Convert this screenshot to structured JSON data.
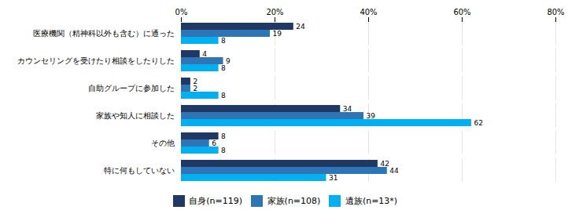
{
  "chart_data": {
    "type": "bar",
    "orientation": "horizontal",
    "categories": [
      "医療機関（精神科以外も含む）に通った",
      "カウンセリングを受けたり相談をしたりした",
      "自助グループに参加した",
      "家族や知人に相談した",
      "その他",
      "特に何もしていない"
    ],
    "series": [
      {
        "name": "自身(n=119)",
        "color": "#1F3864",
        "values": [
          24,
          4,
          2,
          34,
          8,
          42
        ]
      },
      {
        "name": "家族(n=108)",
        "color": "#2E75B6",
        "values": [
          19,
          9,
          2,
          39,
          6,
          44
        ]
      },
      {
        "name": "遺族(n=13*)",
        "color": "#00B0F0",
        "values": [
          8,
          8,
          8,
          62,
          8,
          31
        ]
      }
    ],
    "xlim": [
      0,
      80
    ],
    "xticks": [
      {
        "value": 0,
        "label": "0%"
      },
      {
        "value": 20,
        "label": "20%"
      },
      {
        "value": 40,
        "label": "40%"
      },
      {
        "value": 60,
        "label": "60%"
      },
      {
        "value": 80,
        "label": "80%"
      }
    ],
    "grid": true,
    "data_labels": true,
    "legend": "bottom"
  }
}
